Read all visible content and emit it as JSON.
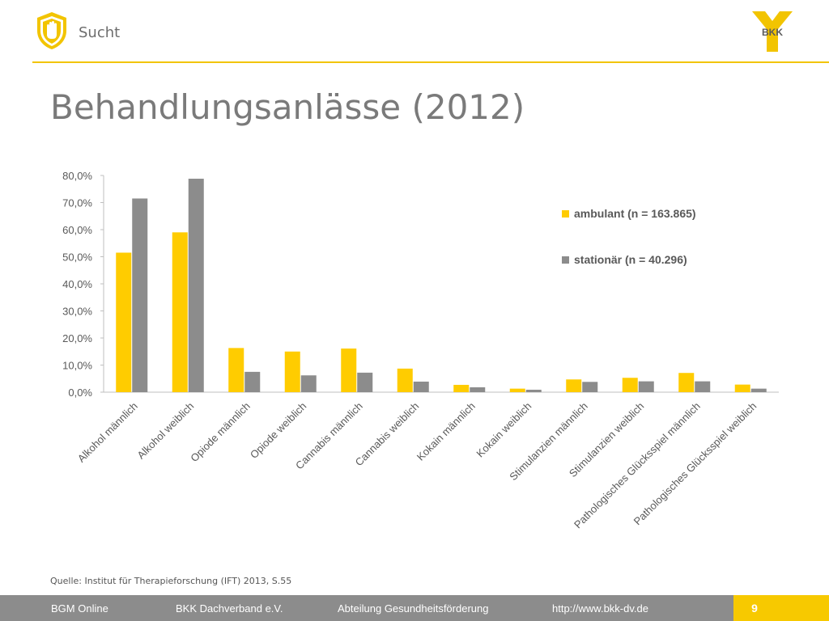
{
  "header": {
    "section_label": "Sucht",
    "shield_icon": "stop-hand-shield-icon",
    "logo_text": "BKK"
  },
  "title": "Behandlungsanlässe (2012)",
  "colors": {
    "accent": "#f2c400",
    "ambulant": "#ffcc00",
    "stationaer": "#8c8c8c",
    "footer": "#8c8c8c"
  },
  "chart_data": {
    "type": "bar",
    "categories": [
      "Alkohol männlich",
      "Alkohol weiblich",
      "Opiode männlich",
      "Opiode weiblich",
      "Cannabis männlich",
      "Cannabis weiblich",
      "Kokain männlich",
      "Kokain weiblich",
      "Stimulanzien männlich",
      "Stimulanzien weiblich",
      "Pathologisches Glücksspiel männlich",
      "Pathologisches Glücksspiel weiblich"
    ],
    "series": [
      {
        "name": "ambulant (n = 163.865)",
        "values": [
          51.5,
          59.0,
          16.3,
          15.0,
          16.1,
          8.7,
          2.7,
          1.3,
          4.7,
          5.3,
          7.1,
          2.8
        ]
      },
      {
        "name": "stationär (n = 40.296)",
        "values": [
          71.5,
          78.8,
          7.5,
          6.2,
          7.2,
          3.9,
          1.8,
          0.9,
          3.8,
          4.0,
          4.0,
          1.3
        ]
      }
    ],
    "yticks": [
      "0,0%",
      "10,0%",
      "20,0%",
      "30,0%",
      "40,0%",
      "50,0%",
      "60,0%",
      "70,0%",
      "80,0%"
    ],
    "ylim": [
      0,
      80
    ],
    "legend_position": "right",
    "grid": false
  },
  "source": "Quelle: Institut für Therapieforschung (IFT) 2013, S.55",
  "footer": {
    "item1": "BGM Online",
    "item2": "BKK Dachverband e.V.",
    "item3": "Abteilung Gesundheitsförderung",
    "item4": "http://www.bkk-dv.de",
    "page_number": "9"
  }
}
